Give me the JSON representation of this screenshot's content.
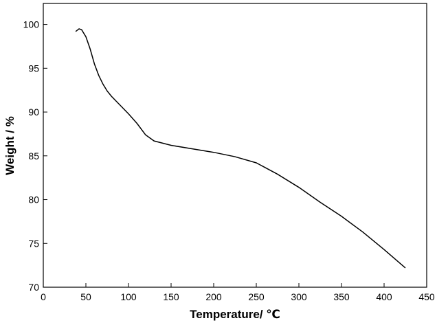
{
  "chart_data": {
    "type": "line",
    "x_label": "Temperature/ ℃",
    "y_label": "Weight / %",
    "x": [
      38,
      42,
      45,
      50,
      55,
      60,
      65,
      70,
      75,
      80,
      90,
      100,
      110,
      120,
      130,
      150,
      175,
      200,
      225,
      250,
      275,
      300,
      325,
      350,
      375,
      400,
      425
    ],
    "series": [
      {
        "color": "#000000",
        "values": [
          99.2,
          99.5,
          99.4,
          98.6,
          97.2,
          95.5,
          94.2,
          93.2,
          92.4,
          91.8,
          90.8,
          89.8,
          88.7,
          87.4,
          86.7,
          86.2,
          85.8,
          85.4,
          84.9,
          84.2,
          82.9,
          81.4,
          79.7,
          78.1,
          76.3,
          74.3,
          72.2
        ]
      }
    ],
    "xlim": [
      0,
      450
    ],
    "xticks": [
      0,
      50,
      100,
      150,
      200,
      250,
      300,
      350,
      400,
      450
    ],
    "ylim": [
      70,
      102.4
    ],
    "yticks": [
      70,
      75,
      80,
      85,
      90,
      95,
      100
    ]
  }
}
